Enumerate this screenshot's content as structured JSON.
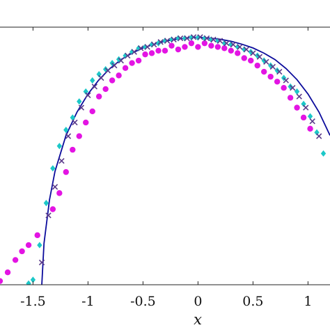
{
  "chart_data": {
    "type": "scatter",
    "title": "",
    "xlabel": "x",
    "ylabel": "",
    "xlim": [
      -1.8,
      1.2
    ],
    "ylim": [
      0,
      1.04
    ],
    "grid": false,
    "x_ticks": [
      "-1.5",
      "-1",
      "-0.5",
      "0",
      "0.5",
      "1"
    ],
    "x_tick_values": [
      -1.5,
      -1,
      -0.5,
      0,
      0.5,
      1
    ],
    "colors": {
      "line": "#0b0b9c",
      "circles": "#e314e3",
      "diamonds": "#1cc8c8",
      "crosses": "#5a3a8a"
    },
    "series": [
      {
        "marker": "line",
        "x": [
          -1.42,
          -1.4,
          -1.35,
          -1.3,
          -1.2,
          -1.1,
          -1.0,
          -0.9,
          -0.8,
          -0.7,
          -0.6,
          -0.5,
          -0.4,
          -0.3,
          -0.2,
          -0.1,
          0.0,
          0.1,
          0.2,
          0.3,
          0.4,
          0.5,
          0.6,
          0.7,
          0.8,
          0.9,
          1.0,
          1.1,
          1.2
        ],
        "y": [
          0.0,
          0.167,
          0.343,
          0.458,
          0.603,
          0.697,
          0.77,
          0.828,
          0.873,
          0.909,
          0.935,
          0.956,
          0.971,
          0.983,
          0.991,
          0.996,
          1.0,
          0.996,
          0.991,
          0.983,
          0.971,
          0.956,
          0.935,
          0.909,
          0.873,
          0.828,
          0.77,
          0.697,
          0.603
        ]
      },
      {
        "marker": "circle",
        "x": [
          -1.8,
          -1.73,
          -1.66,
          -1.6,
          -1.54,
          -1.46,
          -1.32,
          -1.26,
          -1.2,
          -1.14,
          -1.08,
          -1.02,
          -0.96,
          -0.9,
          -0.84,
          -0.78,
          -0.72,
          -0.66,
          -0.6,
          -0.54,
          -0.48,
          -0.42,
          -0.36,
          -0.3,
          -0.24,
          -0.18,
          -0.12,
          -0.06,
          0.0,
          0.06,
          0.12,
          0.18,
          0.24,
          0.3,
          0.36,
          0.42,
          0.48,
          0.54,
          0.6,
          0.66,
          0.72,
          0.78,
          0.84,
          0.9,
          0.96,
          1.02
        ],
        "y": [
          0.015,
          0.05,
          0.1,
          0.135,
          0.16,
          0.2,
          0.305,
          0.37,
          0.455,
          0.545,
          0.6,
          0.655,
          0.7,
          0.76,
          0.79,
          0.825,
          0.845,
          0.875,
          0.895,
          0.905,
          0.93,
          0.935,
          0.945,
          0.945,
          0.965,
          0.95,
          0.96,
          0.975,
          0.96,
          0.975,
          0.965,
          0.96,
          0.955,
          0.945,
          0.935,
          0.915,
          0.905,
          0.885,
          0.86,
          0.84,
          0.82,
          0.795,
          0.755,
          0.715,
          0.675,
          0.63
        ]
      },
      {
        "marker": "diamond",
        "x": [
          -1.54,
          -1.5,
          -1.44,
          -1.38,
          -1.32,
          -1.26,
          -1.2,
          -1.14,
          -1.08,
          -1.02,
          -0.96,
          -0.9,
          -0.84,
          -0.78,
          -0.72,
          -0.66,
          -0.6,
          -0.54,
          -0.48,
          -0.42,
          -0.36,
          -0.3,
          -0.24,
          -0.18,
          -0.12,
          -0.06,
          0.0,
          0.06,
          0.12,
          0.18,
          0.24,
          0.3,
          0.36,
          0.42,
          0.48,
          0.54,
          0.6,
          0.66,
          0.72,
          0.78,
          0.84,
          0.9,
          0.96,
          1.02,
          1.08,
          1.14
        ],
        "y": [
          0.005,
          0.02,
          0.16,
          0.33,
          0.47,
          0.56,
          0.625,
          0.675,
          0.74,
          0.78,
          0.825,
          0.85,
          0.87,
          0.895,
          0.91,
          0.925,
          0.94,
          0.955,
          0.96,
          0.97,
          0.975,
          0.985,
          0.99,
          0.995,
          0.995,
          0.998,
          0.998,
          0.995,
          0.99,
          0.985,
          0.975,
          0.97,
          0.96,
          0.95,
          0.94,
          0.925,
          0.905,
          0.885,
          0.865,
          0.835,
          0.8,
          0.78,
          0.73,
          0.68,
          0.615,
          0.53
        ]
      },
      {
        "marker": "cross",
        "x": [
          -1.42,
          -1.36,
          -1.3,
          -1.24,
          -1.18,
          -1.12,
          -1.06,
          -1.0,
          -0.94,
          -0.88,
          -0.82,
          -0.76,
          -0.7,
          -0.64,
          -0.58,
          -0.52,
          -0.46,
          -0.4,
          -0.34,
          -0.28,
          -0.22,
          -0.16,
          -0.1,
          -0.04,
          0.02,
          0.08,
          0.14,
          0.2,
          0.26,
          0.32,
          0.38,
          0.44,
          0.5,
          0.56,
          0.62,
          0.68,
          0.74,
          0.8,
          0.86,
          0.92,
          0.98,
          1.04,
          1.1
        ],
        "y": [
          0.09,
          0.28,
          0.395,
          0.5,
          0.6,
          0.655,
          0.715,
          0.765,
          0.8,
          0.835,
          0.865,
          0.885,
          0.905,
          0.925,
          0.94,
          0.955,
          0.96,
          0.97,
          0.98,
          0.985,
          0.99,
          0.995,
          0.995,
          1.0,
          1.0,
          0.995,
          0.99,
          0.985,
          0.975,
          0.97,
          0.96,
          0.95,
          0.935,
          0.92,
          0.9,
          0.88,
          0.86,
          0.825,
          0.795,
          0.76,
          0.715,
          0.66,
          0.6
        ]
      }
    ]
  }
}
